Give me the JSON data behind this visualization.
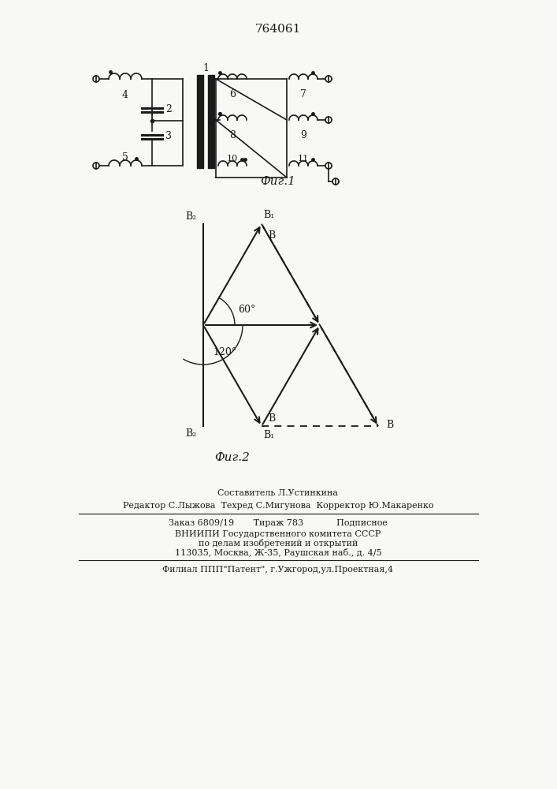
{
  "title_number": "764061",
  "fig1_label": "Фиг.1",
  "fig2_label": "Фиг.2",
  "footer_line1": "Составитель Л.Устинкина",
  "footer_line2": "Редактор С.Лыжова  Техред С.Мигунова  Корректор Ю.Макаренко",
  "footer_line3": "Заказ 6809/19       Тираж 783            Подписное",
  "footer_line4": "ВНИИПИ Государственного комитета СССР",
  "footer_line5": "по делам изобретений и открытий",
  "footer_line6": "113035, Москва, Ж-35, Раушская наб., д. 4/5",
  "footer_line7": "Филиал ППП\"Патент\", г.Ужгород,ул.Проектная,4",
  "bg_color": "#f8f8f6",
  "line_color": "#1a1a1a"
}
